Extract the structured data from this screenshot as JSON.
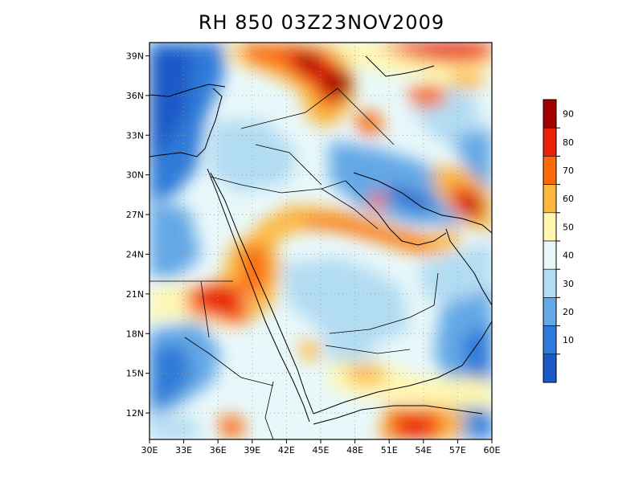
{
  "title": "RH 850 03Z23NOV2009",
  "map": {
    "lon_range": [
      30,
      60
    ],
    "lat_range": [
      10,
      40
    ],
    "lat_ticks": [
      "39N",
      "36N",
      "33N",
      "30N",
      "27N",
      "24N",
      "21N",
      "18N",
      "15N",
      "12N"
    ],
    "lon_ticks": [
      "30E",
      "33E",
      "36E",
      "39E",
      "42E",
      "45E",
      "48E",
      "51E",
      "54E",
      "57E",
      "60E"
    ],
    "grid": true,
    "field": "relative humidity at 850 hPa"
  },
  "colorbar": {
    "labels": [
      "90",
      "80",
      "70",
      "60",
      "50",
      "40",
      "30",
      "20",
      "10"
    ],
    "colors": [
      "#a50000",
      "#e8200c",
      "#fa6a0a",
      "#fcb840",
      "#fff7b0",
      "#e8f8fa",
      "#b2dcf2",
      "#64a8e6",
      "#2e7ad8",
      "#1c58c8"
    ]
  }
}
